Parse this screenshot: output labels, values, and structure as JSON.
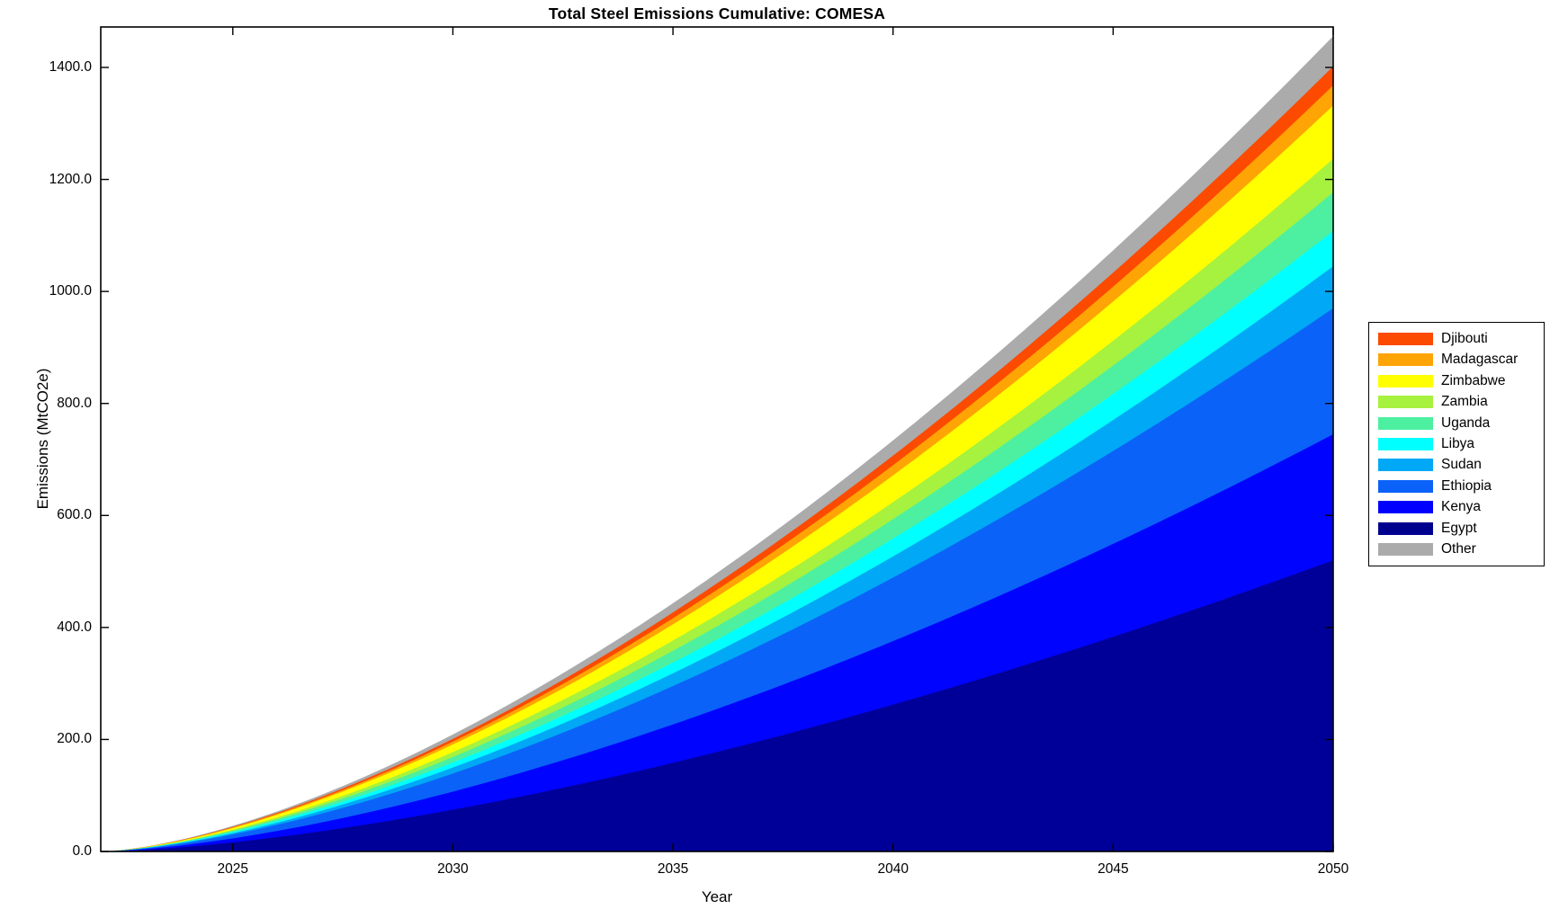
{
  "title": "Total Steel Emissions Cumulative: COMESA",
  "axes": {
    "xlabel": "Year",
    "ylabel": "Emissions (MtCO2e)",
    "x_tick_labels": [
      "2025",
      "2030",
      "2035",
      "2040",
      "2045",
      "2050"
    ],
    "x_tick_values": [
      2025,
      2030,
      2035,
      2040,
      2045,
      2050
    ],
    "y_tick_labels": [
      "0.0",
      "200.0",
      "400.0",
      "600.0",
      "800.0",
      "1000.0",
      "1200.0",
      "1400.0"
    ],
    "y_tick_values": [
      0,
      200,
      400,
      600,
      800,
      1000,
      1200,
      1400
    ]
  },
  "legend": {
    "position": "right-outside",
    "entries_top_to_bottom": [
      "Djibouti",
      "Madagascar",
      "Zimbabwe",
      "Zambia",
      "Uganda",
      "Libya",
      "Sudan",
      "Ethiopia",
      "Kenya",
      "Egypt",
      "Other"
    ]
  },
  "chart_data": {
    "type": "area",
    "stacked": true,
    "title": "Total Steel Emissions Cumulative: COMESA",
    "xlabel": "Year",
    "ylabel": "Emissions (MtCO2e)",
    "x_range": [
      2022,
      2050
    ],
    "ylim": [
      0,
      1472
    ],
    "grid": false,
    "box": true,
    "growth_exponent": 1.55,
    "sample_years": [
      2022,
      2025,
      2030,
      2035,
      2040,
      2045,
      2050
    ],
    "series_bottom_to_top": [
      {
        "name": "Egypt",
        "color": "#000099",
        "swatch_color": "#00008f",
        "cumulative_mtco2e_by_sample_year": [
          0,
          16,
          75,
          159,
          262,
          383,
          520
        ],
        "value_2050": 520
      },
      {
        "name": "Kenya",
        "color": "#0004ff",
        "swatch_color": "#0000ff",
        "cumulative_mtco2e_by_sample_year": [
          0,
          7,
          32,
          69,
          113,
          166,
          225
        ],
        "value_2050": 225
      },
      {
        "name": "Ethiopia",
        "color": "#0b62f8",
        "swatch_color": "#0b62f8",
        "cumulative_mtco2e_by_sample_year": [
          0,
          7,
          32,
          69,
          113,
          166,
          225
        ],
        "value_2050": 225
      },
      {
        "name": "Sudan",
        "color": "#00a8f5",
        "swatch_color": "#00a8f5",
        "cumulative_mtco2e_by_sample_year": [
          0,
          2,
          11,
          23,
          38,
          55,
          75
        ],
        "value_2050": 75
      },
      {
        "name": "Libya",
        "color": "#00ffff",
        "swatch_color": "#00ffff",
        "cumulative_mtco2e_by_sample_year": [
          0,
          2,
          9,
          19,
          32,
          46,
          63
        ],
        "value_2050": 63
      },
      {
        "name": "Uganda",
        "color": "#4df0a0",
        "swatch_color": "#4df0a0",
        "cumulative_mtco2e_by_sample_year": [
          0,
          2,
          10,
          21,
          35,
          51,
          69
        ],
        "value_2050": 69
      },
      {
        "name": "Zambia",
        "color": "#a6f23f",
        "swatch_color": "#a6f23f",
        "cumulative_mtco2e_by_sample_year": [
          0,
          2,
          9,
          18,
          30,
          44,
          60
        ],
        "value_2050": 60
      },
      {
        "name": "Zimbabwe",
        "color": "#ffff00",
        "swatch_color": "#ffff00",
        "cumulative_mtco2e_by_sample_year": [
          0,
          3,
          14,
          29,
          48,
          70,
          95
        ],
        "value_2050": 95
      },
      {
        "name": "Madagascar",
        "color": "#ffa405",
        "swatch_color": "#ffa405",
        "cumulative_mtco2e_by_sample_year": [
          0,
          1,
          5,
          11,
          18,
          27,
          36
        ],
        "value_2050": 36
      },
      {
        "name": "Djibouti",
        "color": "#fc4a00",
        "swatch_color": "#fc4a00",
        "cumulative_mtco2e_by_sample_year": [
          0,
          1,
          5,
          10,
          17,
          25,
          34
        ],
        "value_2050": 34
      },
      {
        "name": "Other",
        "color": "#ababab",
        "swatch_color": "#ababab",
        "cumulative_mtco2e_by_sample_year": [
          0,
          2,
          8,
          16,
          27,
          40,
          54
        ],
        "value_2050": 54
      }
    ],
    "total_2050": 1456,
    "legend_position": "right-outside"
  }
}
